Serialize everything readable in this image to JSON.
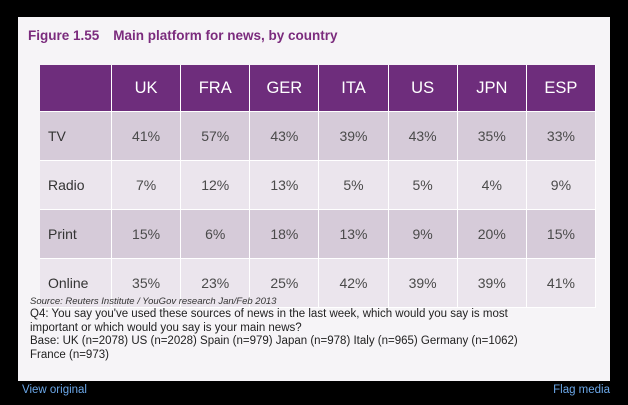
{
  "figure": {
    "number": "Figure 1.55",
    "title": "Main platform for news, by country"
  },
  "chart_data": {
    "type": "table",
    "title": "Main platform for news, by country",
    "columns": [
      "UK",
      "FRA",
      "GER",
      "ITA",
      "US",
      "JPN",
      "ESP"
    ],
    "rows": [
      {
        "label": "TV",
        "values": [
          "41%",
          "57%",
          "43%",
          "39%",
          "43%",
          "35%",
          "33%"
        ]
      },
      {
        "label": "Radio",
        "values": [
          "7%",
          "12%",
          "13%",
          "5%",
          "5%",
          "4%",
          "9%"
        ]
      },
      {
        "label": "Print",
        "values": [
          "15%",
          "6%",
          "18%",
          "13%",
          "9%",
          "20%",
          "15%"
        ]
      },
      {
        "label": "Online",
        "values": [
          "35%",
          "23%",
          "25%",
          "42%",
          "39%",
          "39%",
          "41%"
        ]
      }
    ]
  },
  "notes": {
    "source": "Source: Reuters Institute / YouGov research Jan/Feb 2013",
    "question_line1": "Q4: You say you've used these sources of news in the last week, which would you say is most",
    "question_line2": "important or which would you say is your main news?",
    "base_line1": "Base: UK (n=2078) US (n=2028) Spain (n=979) Japan (n=978) Italy (n=965) Germany (n=1062)",
    "base_line2": "France (n=973)"
  },
  "footer": {
    "view_original": "View original",
    "flag_media": "Flag media"
  },
  "colors": {
    "header": "#6e2d7c",
    "title": "#7b2b7d",
    "row_dark": "#d6cbd9",
    "row_light": "#ebe5ed",
    "link": "#6ba7e8"
  }
}
